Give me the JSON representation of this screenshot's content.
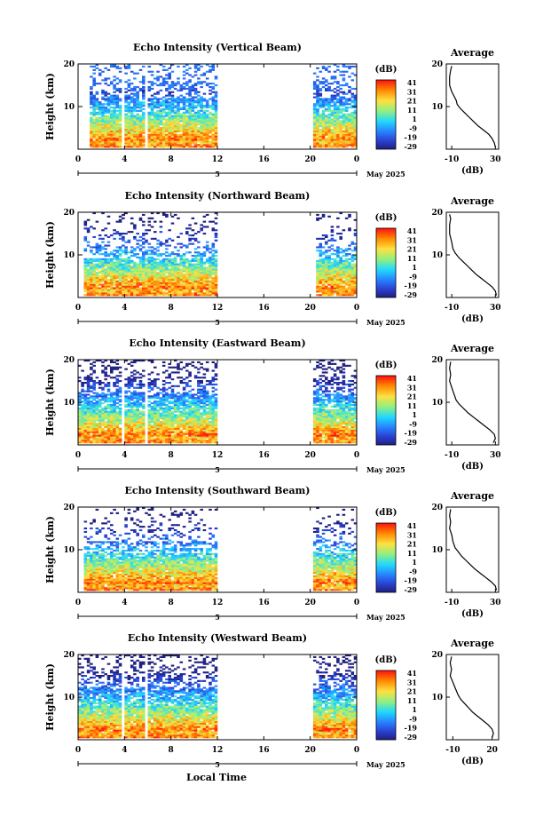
{
  "figure": {
    "ylabel": "Height (km)",
    "xlabel": "Local Time",
    "date_label": "May 2025",
    "day_marker": "5",
    "colorbar_title": "(dB)",
    "colorbar_ticks": [
      "41",
      "31",
      "21",
      "11",
      "1",
      "-9",
      "-19",
      "-29"
    ],
    "avg_title": "Average",
    "avg_xlabel": "(dB)",
    "colors": {
      "scale": [
        "#ff0000",
        "#ff7f00",
        "#ffd700",
        "#7fff7f",
        "#00d7ff",
        "#2080ff",
        "#2030c0",
        "#202080"
      ]
    }
  },
  "chart_data": [
    {
      "type": "heatmap",
      "title": "Echo Intensity (Vertical Beam)",
      "x_ticks": [
        "0",
        "4",
        "8",
        "12",
        "16",
        "20",
        "0"
      ],
      "xlim": [
        0,
        24
      ],
      "y_ticks": [
        "20",
        "10"
      ],
      "ylim": [
        0,
        20
      ],
      "data_gaps_hours": [
        [
          0,
          0.9
        ],
        [
          3.8,
          4.1
        ],
        [
          5.8,
          6.1
        ],
        [
          12,
          20.2
        ]
      ],
      "profile_x_ticks": [
        "-10",
        "30"
      ],
      "profile_xlim": [
        -15,
        33
      ],
      "profile": [
        [
          30,
          0.5
        ],
        [
          29,
          1.5
        ],
        [
          27,
          2.5
        ],
        [
          24,
          3.5
        ],
        [
          19,
          4.5
        ],
        [
          14,
          5.5
        ],
        [
          10,
          6.5
        ],
        [
          6,
          7.5
        ],
        [
          2,
          8.5
        ],
        [
          -2,
          9.5
        ],
        [
          -5,
          10.5
        ],
        [
          -6,
          11.5
        ],
        [
          -8,
          12.5
        ],
        [
          -10,
          13.5
        ],
        [
          -12,
          15
        ],
        [
          -12,
          17
        ],
        [
          -11,
          18.5
        ],
        [
          -10,
          19.5
        ]
      ]
    },
    {
      "type": "heatmap",
      "title": "Echo Intensity (Northward Beam)",
      "x_ticks": [
        "0",
        "4",
        "8",
        "12",
        "16",
        "20",
        "0"
      ],
      "xlim": [
        0,
        24
      ],
      "y_ticks": [
        "20",
        "10"
      ],
      "ylim": [
        0,
        20
      ],
      "data_gaps_hours": [
        [
          0,
          0.5
        ],
        [
          12,
          20.5
        ]
      ],
      "profile_x_ticks": [
        "-10",
        "30"
      ],
      "profile_xlim": [
        -15,
        33
      ],
      "profile": [
        [
          31,
          0.5
        ],
        [
          30,
          1.5
        ],
        [
          27,
          2.5
        ],
        [
          22,
          3.5
        ],
        [
          17,
          4.5
        ],
        [
          12,
          5.5
        ],
        [
          8,
          6.5
        ],
        [
          4,
          7.5
        ],
        [
          0,
          8.5
        ],
        [
          -4,
          9.5
        ],
        [
          -7,
          10.5
        ],
        [
          -9,
          11.5
        ],
        [
          -10,
          13
        ],
        [
          -12,
          15
        ],
        [
          -12,
          17
        ],
        [
          -11,
          18.5
        ],
        [
          -12,
          19.5
        ]
      ]
    },
    {
      "type": "heatmap",
      "title": "Echo Intensity (Eastward Beam)",
      "x_ticks": [
        "0",
        "4",
        "8",
        "12",
        "16",
        "20",
        "0"
      ],
      "xlim": [
        0,
        24
      ],
      "y_ticks": [
        "20",
        "10"
      ],
      "ylim": [
        0,
        20
      ],
      "data_gaps_hours": [
        [
          3.8,
          4.1
        ],
        [
          5.8,
          6.1
        ],
        [
          12,
          20.2
        ]
      ],
      "profile_x_ticks": [
        "-10",
        "30"
      ],
      "profile_xlim": [
        -15,
        33
      ],
      "profile": [
        [
          28,
          0.5
        ],
        [
          30,
          1.5
        ],
        [
          29,
          2.5
        ],
        [
          25,
          3.5
        ],
        [
          20,
          4.5
        ],
        [
          15,
          5.5
        ],
        [
          10,
          6.5
        ],
        [
          5,
          7.5
        ],
        [
          1,
          8.5
        ],
        [
          -3,
          9.5
        ],
        [
          -6,
          10.5
        ],
        [
          -8,
          12
        ],
        [
          -10,
          13.5
        ],
        [
          -12,
          15
        ],
        [
          -11,
          16.5
        ],
        [
          -12,
          18
        ],
        [
          -11,
          19.5
        ]
      ]
    },
    {
      "type": "heatmap",
      "title": "Echo Intensity (Southward Beam)",
      "x_ticks": [
        "0",
        "4",
        "8",
        "12",
        "16",
        "20",
        "0"
      ],
      "xlim": [
        0,
        24
      ],
      "y_ticks": [
        "20",
        "10"
      ],
      "ylim": [
        0,
        20
      ],
      "data_gaps_hours": [
        [
          0,
          0.5
        ],
        [
          12,
          20.3
        ]
      ],
      "profile_x_ticks": [
        "-10",
        "30"
      ],
      "profile_xlim": [
        -15,
        33
      ],
      "profile": [
        [
          31,
          0.5
        ],
        [
          30,
          1.5
        ],
        [
          26,
          2.5
        ],
        [
          21,
          3.5
        ],
        [
          16,
          4.5
        ],
        [
          11,
          5.5
        ],
        [
          7,
          6.5
        ],
        [
          3,
          7.5
        ],
        [
          -1,
          8.5
        ],
        [
          -4,
          9.5
        ],
        [
          -7,
          10.5
        ],
        [
          -9,
          12
        ],
        [
          -10,
          13.5
        ],
        [
          -12,
          15
        ],
        [
          -11,
          16.5
        ],
        [
          -12,
          18
        ],
        [
          -11,
          19.5
        ]
      ]
    },
    {
      "type": "heatmap",
      "title": "Echo Intensity (Westward Beam)",
      "x_ticks": [
        "0",
        "4",
        "8",
        "12",
        "16",
        "20",
        "0"
      ],
      "xlim": [
        0,
        24
      ],
      "y_ticks": [
        "20",
        "10"
      ],
      "ylim": [
        0,
        20
      ],
      "data_gaps_hours": [
        [
          3.8,
          4.1
        ],
        [
          5.8,
          6.1
        ],
        [
          12,
          20.2
        ]
      ],
      "profile_x_ticks": [
        "-10",
        "20"
      ],
      "profile_xlim": [
        -15,
        25
      ],
      "profile": [
        [
          20,
          0.5
        ],
        [
          21,
          1.5
        ],
        [
          20,
          2.5
        ],
        [
          17,
          3.5
        ],
        [
          13,
          4.5
        ],
        [
          9,
          5.5
        ],
        [
          5,
          6.5
        ],
        [
          2,
          7.5
        ],
        [
          -1,
          8.5
        ],
        [
          -4,
          9.5
        ],
        [
          -6,
          10.5
        ],
        [
          -8,
          12
        ],
        [
          -10,
          13.5
        ],
        [
          -12,
          15
        ],
        [
          -11,
          16.5
        ],
        [
          -12,
          18
        ],
        [
          -11,
          19.5
        ]
      ]
    }
  ]
}
